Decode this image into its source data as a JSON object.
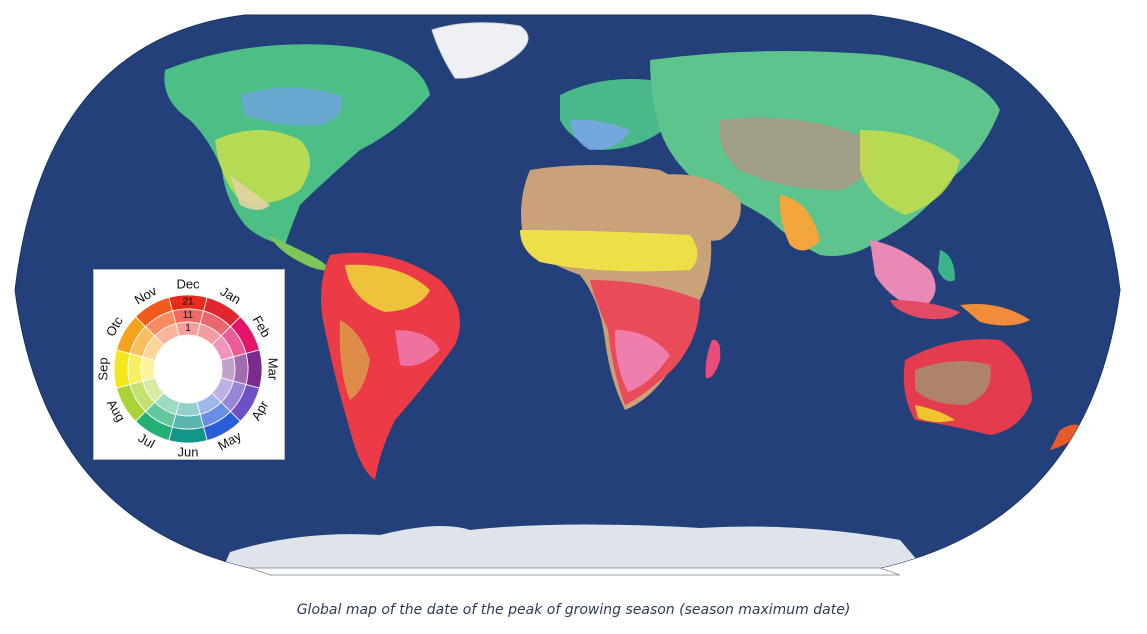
{
  "caption": "Global map of the date of the peak of growing season (season maximum date)",
  "legend": {
    "months": [
      {
        "label": "Dec",
        "color": "#e8291c"
      },
      {
        "label": "Jan",
        "color": "#e0262e"
      },
      {
        "label": "Feb",
        "color": "#e3146a"
      },
      {
        "label": "Mar",
        "color": "#7b2b8e"
      },
      {
        "label": "Apr",
        "color": "#6f4fc4"
      },
      {
        "label": "May",
        "color": "#2a5ed8"
      },
      {
        "label": "Jun",
        "color": "#14958c"
      },
      {
        "label": "Jul",
        "color": "#22b074"
      },
      {
        "label": "Aug",
        "color": "#a9d336"
      },
      {
        "label": "Sep",
        "color": "#f3e81e"
      },
      {
        "label": "Otc",
        "color": "#f7a21c"
      },
      {
        "label": "Nov",
        "color": "#f25a1c"
      }
    ],
    "day_labels": [
      "21",
      "11",
      "1"
    ]
  },
  "colors": {
    "ocean": "#23407a",
    "ice": "#dfe3ea",
    "desert": "#c9a27a",
    "caption_text": "#2b3a55"
  }
}
